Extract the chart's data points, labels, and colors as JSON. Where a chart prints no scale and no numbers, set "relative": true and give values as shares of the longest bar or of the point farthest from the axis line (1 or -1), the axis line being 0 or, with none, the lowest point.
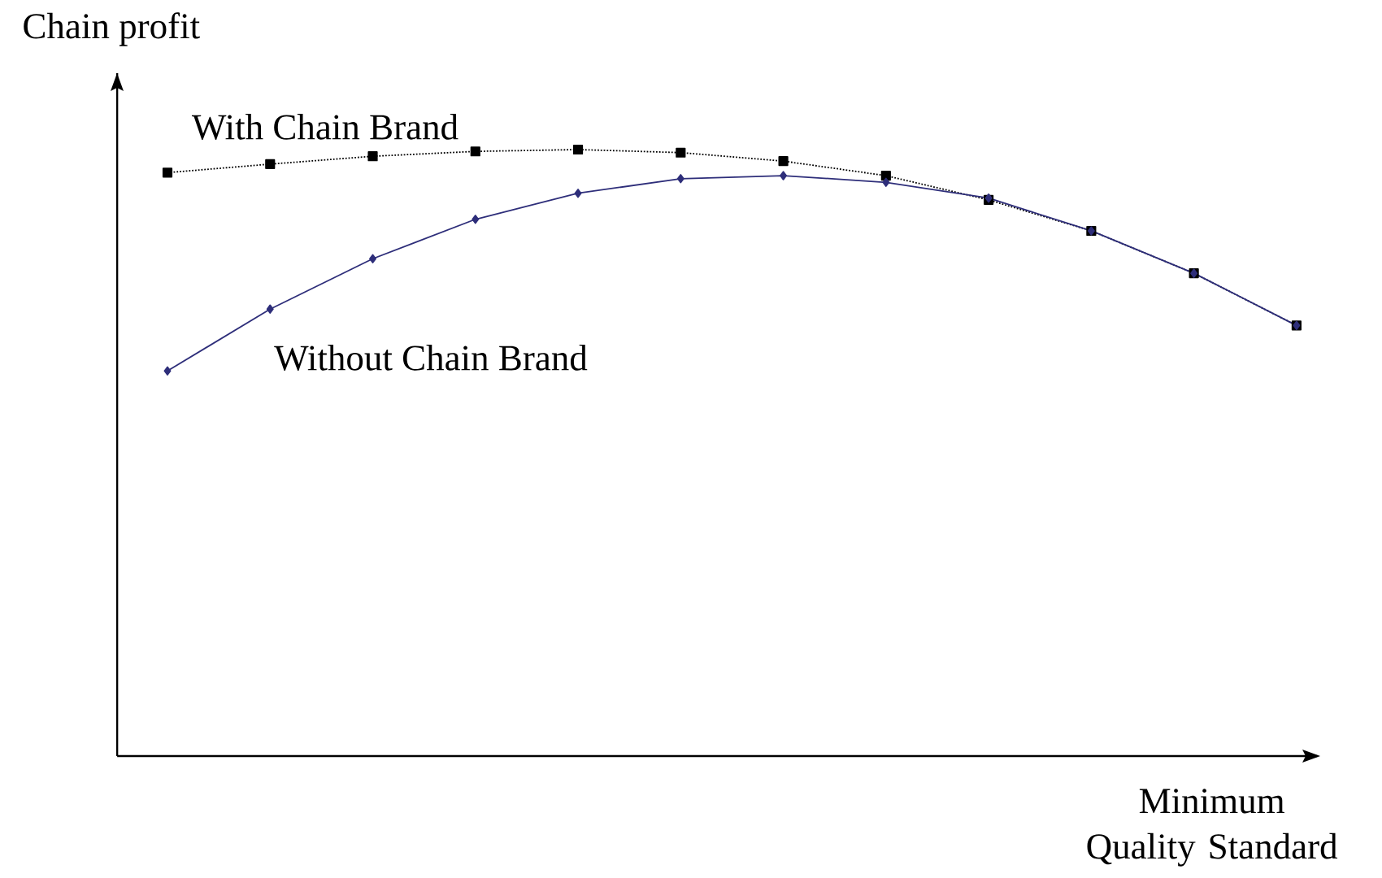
{
  "chart_data": {
    "type": "line",
    "relative": true,
    "xlabel": "Minimum Quality Standard",
    "ylabel": "Chain profit",
    "categories": [
      null,
      null,
      null,
      null,
      null,
      null,
      null,
      null,
      null,
      null,
      null,
      null
    ],
    "series": [
      {
        "name": "With Chain Brand",
        "color": "#000000",
        "marker": "square",
        "line_style": "dotted",
        "values": [
          0.962,
          0.976,
          0.989,
          0.997,
          1,
          0.995,
          0.981,
          0.957,
          0.917,
          0.866,
          0.796,
          0.71
        ]
      },
      {
        "name": "Without Chain Brand",
        "color": "#2e2e7a",
        "marker": "diamond",
        "line_style": "solid",
        "values": [
          0.635,
          0.737,
          0.82,
          0.885,
          0.928,
          0.952,
          0.957,
          0.946,
          0.92,
          0.866,
          0.796,
          0.71
        ]
      }
    ]
  }
}
